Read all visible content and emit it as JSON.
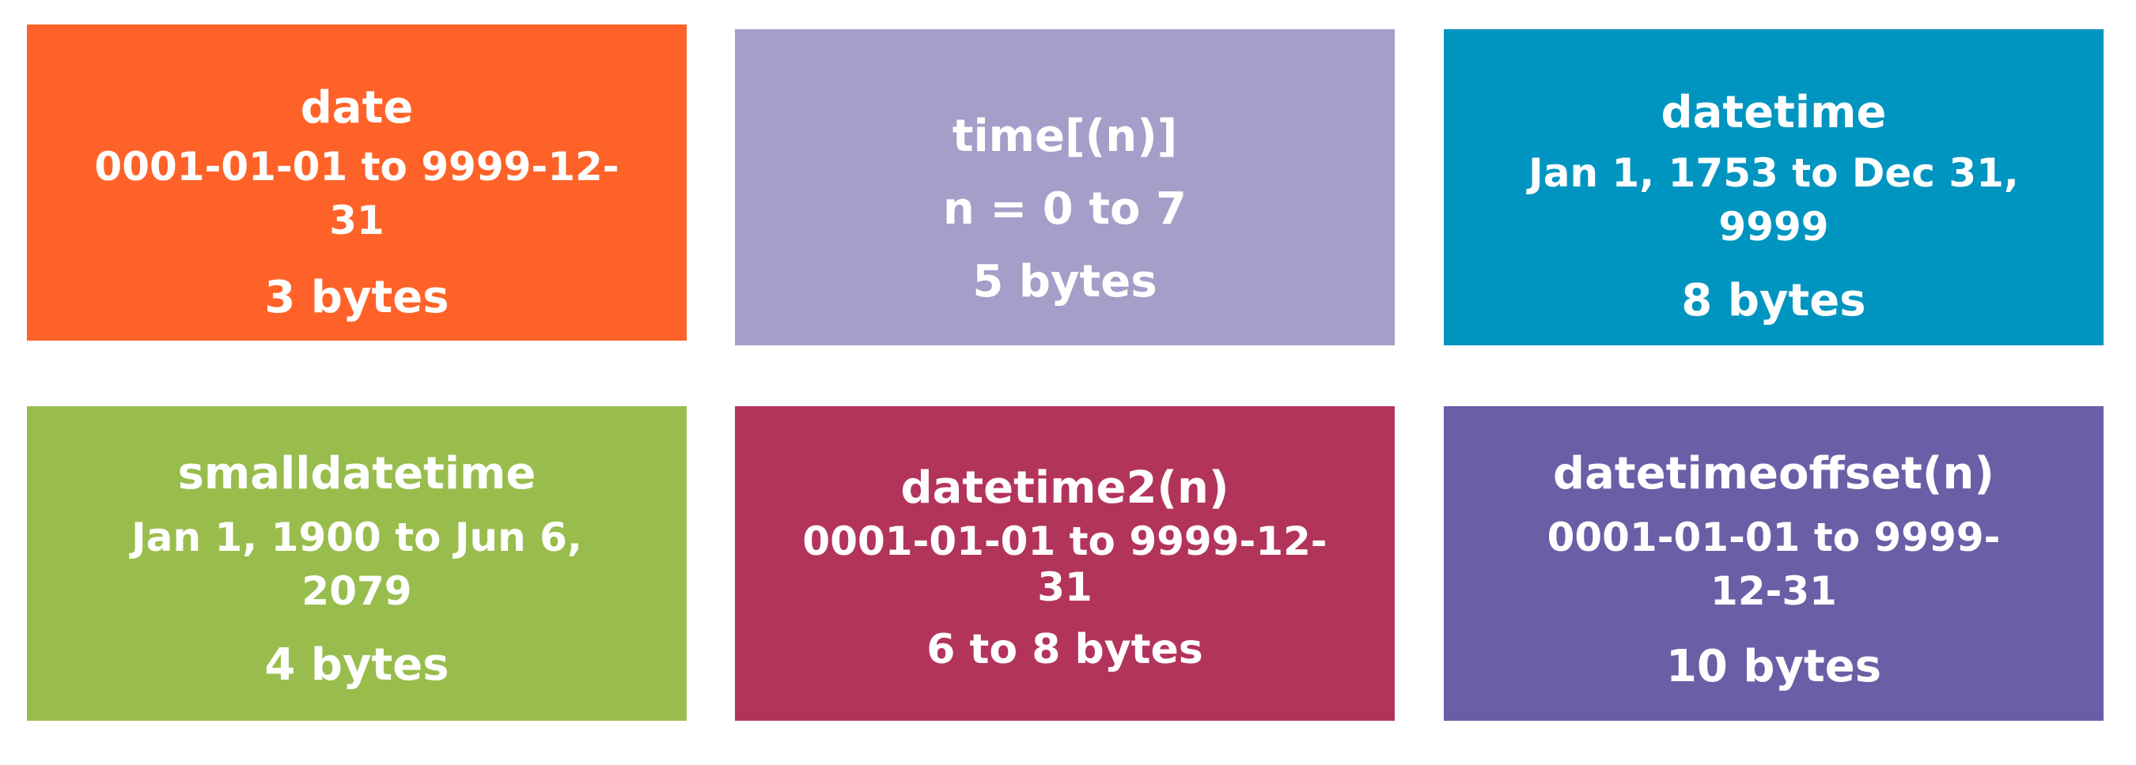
{
  "colors": {
    "date": "#ff6228",
    "time": "#a49ec8",
    "datetime": "#0095c0",
    "smalldatetime": "#99bd4d",
    "datetime2": "#b3345a",
    "datetimeoffset": "#6b5ea6",
    "text": "#ffffff"
  },
  "tiles": [
    {
      "name": "date",
      "range": "0001-01-01 to 9999-12-31",
      "size": "3 bytes"
    },
    {
      "name": "time[(n)]",
      "range": "n = 0 to 7",
      "size": "5 bytes"
    },
    {
      "name": "datetime",
      "range": "Jan 1, 1753 to Dec 31, 9999",
      "size": "8 bytes"
    },
    {
      "name": "smalldatetime",
      "range": "Jan 1, 1900 to Jun 6, 2079",
      "size": "4 bytes"
    },
    {
      "name": "datetime2(n)",
      "range": "0001-01-01 to 9999-12-31",
      "size": "6 to 8 bytes"
    },
    {
      "name": "datetimeoffset(n)",
      "range": "0001-01-01 to 9999-12-31",
      "size": "10 bytes"
    }
  ]
}
